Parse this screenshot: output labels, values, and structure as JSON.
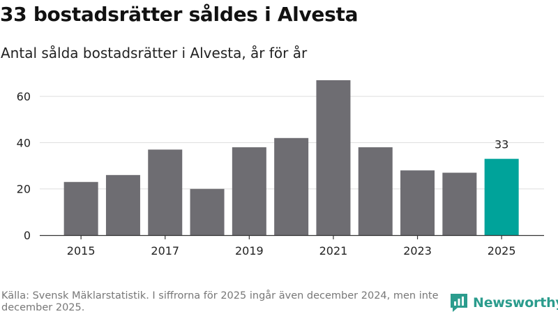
{
  "title": "33 bostadsrätter såldes i Alvesta",
  "subtitle": "Antal sålda bostadsrätter i Alvesta, år för år",
  "source": "Källa: Svensk Mäklarstatistik. I siffrorna för 2025 ingår även december 2024, men inte december 2025.",
  "brand": {
    "name": "Newsworthy",
    "color": "#2b9c8d",
    "icon": "newsworthy-logo-icon"
  },
  "colors": {
    "bar": "#6e6d72",
    "highlight": "#00a39a",
    "grid": "#dddddd",
    "axis": "#333333"
  },
  "chart_data": {
    "type": "bar",
    "categories": [
      "2015",
      "2016",
      "2017",
      "2018",
      "2019",
      "2020",
      "2021",
      "2022",
      "2023",
      "2024",
      "2025"
    ],
    "values": [
      23,
      26,
      37,
      20,
      38,
      42,
      67,
      38,
      28,
      27,
      33
    ],
    "x_tick_labels": [
      "2015",
      "2017",
      "2019",
      "2021",
      "2023",
      "2025"
    ],
    "highlight_category": "2025",
    "highlight_label": "33",
    "ylim": [
      0,
      70
    ],
    "yticks": [
      0,
      20,
      40,
      60
    ],
    "grid": true,
    "xlabel": "",
    "ylabel": ""
  }
}
